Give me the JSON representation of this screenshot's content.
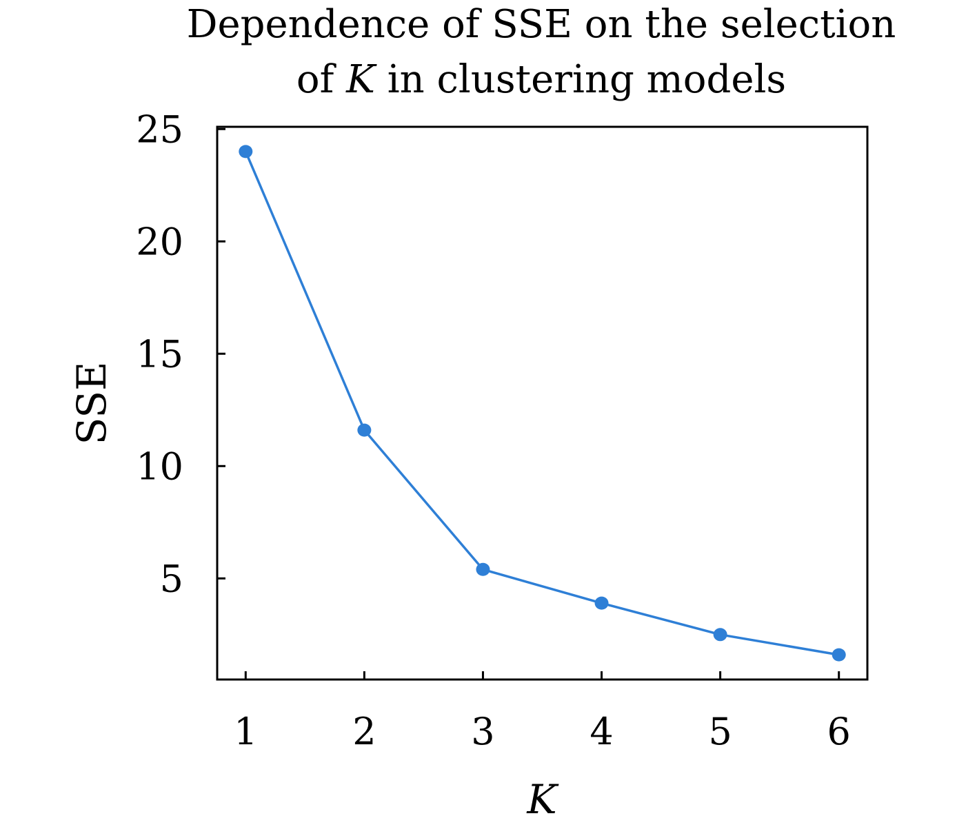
{
  "chart_data": {
    "type": "line",
    "title_line1": "Dependence of SSE on the selection",
    "title_line2_prefix": "of ",
    "title_line2_var": "K",
    "title_line2_suffix": " in clustering models",
    "xlabel": "K",
    "ylabel": "SSE",
    "x": [
      1,
      2,
      3,
      4,
      5,
      6
    ],
    "series": [
      {
        "values": [
          24.0,
          11.6,
          5.4,
          3.9,
          2.5,
          1.6
        ]
      }
    ],
    "xticks": [
      "1",
      "2",
      "3",
      "4",
      "5",
      "6"
    ],
    "yticks": [
      5,
      10,
      15,
      20,
      25
    ],
    "xlim": [
      0.76,
      6.24
    ],
    "ylim": [
      0.5,
      25.1
    ],
    "grid": false,
    "legend": "none",
    "line_color": "#2e7fd6",
    "marker_color": "#2e7fd6"
  }
}
